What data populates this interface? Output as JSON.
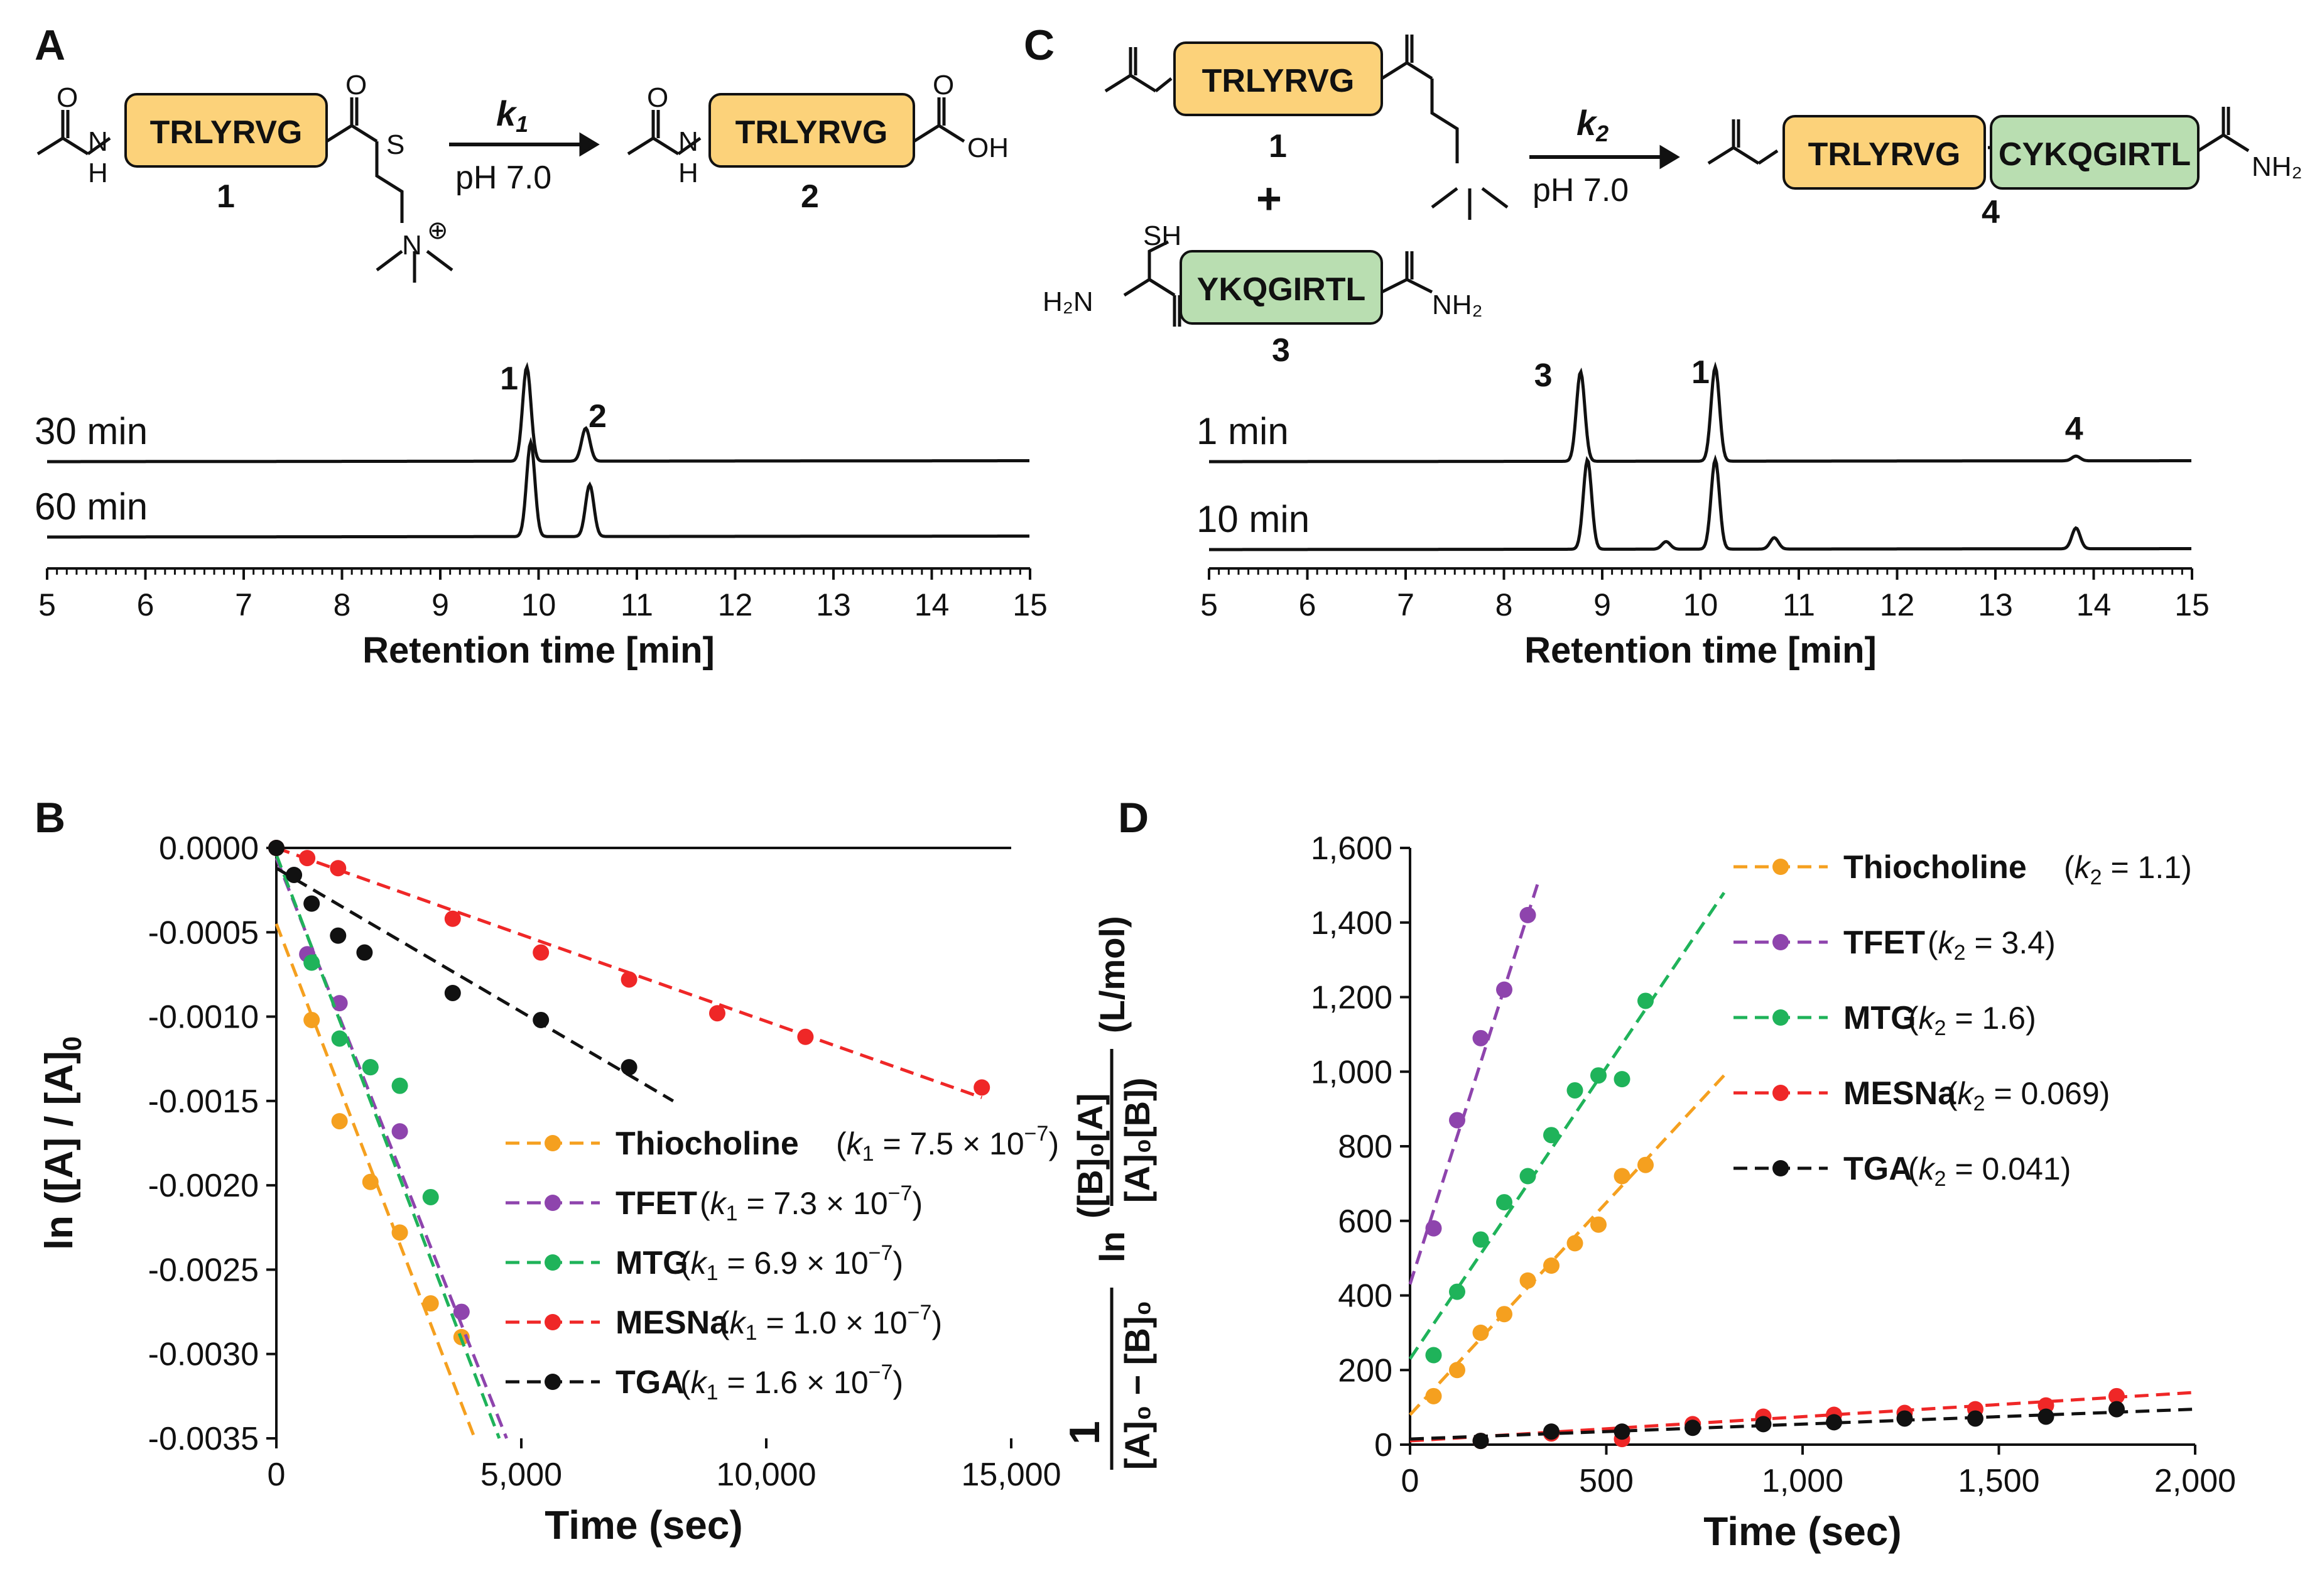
{
  "panels": {
    "A": {
      "letter": "A"
    },
    "B": {
      "letter": "B"
    },
    "C": {
      "letter": "C"
    },
    "D": {
      "letter": "D"
    }
  },
  "colors": {
    "orange": "#f5a01f",
    "purple": "#8e44ad",
    "green": "#1fb35a",
    "red": "#ef2727",
    "black": "#111111",
    "box_orange": "#fcd27a",
    "box_green": "#b9deb1"
  },
  "schemeA": {
    "peptide": "TRLYRVG",
    "reactant_label": "1",
    "product_label": "2",
    "k_label": "k",
    "k_sub": "1",
    "condition": "pH 7.0",
    "s_atom": "S",
    "o_atom": "O",
    "n_atom": "N",
    "h_atom": "H",
    "oh_group": "OH",
    "plus_charge": "⊕"
  },
  "schemeC": {
    "peptide1": "TRLYRVG",
    "peptide3": "YKQGIRTL",
    "peptide4": "CYKQGIRTL",
    "label1": "1",
    "label3": "3",
    "label4": "4",
    "plus": "+",
    "k_label": "k",
    "k_sub": "2",
    "condition": "pH 7.0",
    "sh_group": "SH",
    "h2n_group": "H₂N",
    "nh2_group": "NH₂"
  },
  "chromA": {
    "traces": [
      {
        "label": "30 min",
        "peaks": [
          {
            "rt": 9.88,
            "height": 1.0
          },
          {
            "rt": 10.48,
            "height": 0.35
          }
        ]
      },
      {
        "label": "60 min",
        "peaks": [
          {
            "rt": 9.92,
            "height": 1.0
          },
          {
            "rt": 10.52,
            "height": 0.55
          }
        ]
      }
    ],
    "peak_labels": [
      "1",
      "2"
    ],
    "xticks": [
      "5",
      "6",
      "7",
      "8",
      "9",
      "10",
      "11",
      "12",
      "13",
      "14",
      "15"
    ],
    "xlabel": "Retention time [min]",
    "xlim": [
      5,
      15
    ]
  },
  "chromC": {
    "traces": [
      {
        "label": "1 min",
        "peaks": [
          {
            "rt": 8.78,
            "height": 0.95
          },
          {
            "rt": 10.15,
            "height": 1.0
          },
          {
            "rt": 13.82,
            "height": 0.05
          }
        ]
      },
      {
        "label": "10 min",
        "peaks": [
          {
            "rt": 8.85,
            "height": 0.95
          },
          {
            "rt": 10.15,
            "height": 0.95
          },
          {
            "rt": 9.65,
            "height": 0.08
          },
          {
            "rt": 10.75,
            "height": 0.12
          },
          {
            "rt": 13.82,
            "height": 0.22
          }
        ]
      }
    ],
    "peak_labels": [
      "3",
      "1",
      "4"
    ],
    "xticks": [
      "5",
      "6",
      "7",
      "8",
      "9",
      "10",
      "11",
      "12",
      "13",
      "14",
      "15"
    ],
    "xlabel": "Retention time [min]",
    "xlim": [
      5,
      15
    ]
  },
  "chart_data": [
    {
      "panel": "B",
      "type": "scatter",
      "title": "",
      "xlabel": "Time (sec)",
      "ylabel": "ln ([A] / [A]0)",
      "xlim": [
        0,
        15000
      ],
      "ylim": [
        -0.0035,
        0.0
      ],
      "xticks": [
        0,
        5000,
        10000,
        15000
      ],
      "xtick_labels": [
        "0",
        "5,000",
        "10,000",
        "15,000"
      ],
      "yticks": [
        0.0,
        -0.0005,
        -0.001,
        -0.0015,
        -0.002,
        -0.0025,
        -0.003,
        -0.0035
      ],
      "ytick_labels": [
        "0.0000",
        "-0.0005",
        "-0.0010",
        "-0.0015",
        "-0.0020",
        "-0.0025",
        "-0.0030",
        "-0.0035"
      ],
      "legend_position": "bottom-right",
      "series": [
        {
          "name": "Thiocholine",
          "k_value": "7.5 × 10",
          "k_exp": "−7",
          "color_key": "orange",
          "x": [
            720,
            1290,
            1920,
            2520,
            3150,
            3780
          ],
          "y": [
            -0.00102,
            -0.00162,
            -0.00198,
            -0.00228,
            -0.0027,
            -0.0029
          ],
          "fit": [
            [
              0,
              -0.00045
            ],
            [
              4050,
              -0.0035
            ]
          ]
        },
        {
          "name": "TFET",
          "k_value": "7.3 × 10",
          "k_exp": "−7",
          "color_key": "purple",
          "x": [
            630,
            1290,
            1920,
            2520,
            3780
          ],
          "y": [
            -0.00063,
            -0.00092,
            -0.0013,
            -0.00168,
            -0.00275
          ],
          "fit": [
            [
              0,
              -6e-05
            ],
            [
              4700,
              -0.0035
            ]
          ]
        },
        {
          "name": "MTG",
          "k_value": "6.9 × 10",
          "k_exp": "−7",
          "color_key": "green",
          "x": [
            720,
            1290,
            1920,
            2520,
            3150
          ],
          "y": [
            -0.00068,
            -0.00113,
            -0.0013,
            -0.00141,
            -0.00207
          ],
          "fit": [
            [
              0,
              -4e-05
            ],
            [
              4550,
              -0.0035
            ]
          ]
        },
        {
          "name": "MESNa",
          "k_value": "1.0 × 10",
          "k_exp": "−7",
          "color_key": "red",
          "x": [
            0,
            630,
            1260,
            3600,
            5400,
            7200,
            9000,
            10800,
            14400
          ],
          "y": [
            0.0,
            -6e-05,
            -0.00012,
            -0.00042,
            -0.00062,
            -0.00078,
            -0.00098,
            -0.00112,
            -0.00142
          ],
          "fit": [
            [
              0,
              -0.0
            ],
            [
              14400,
              -0.00148
            ]
          ]
        },
        {
          "name": "TGA",
          "k_value": "1.6 × 10",
          "k_exp": "−7",
          "color_key": "black",
          "x": [
            0,
            360,
            720,
            1260,
            1800,
            3600,
            5400,
            7200
          ],
          "y": [
            0.0,
            -0.00016,
            -0.00033,
            -0.00052,
            -0.00062,
            -0.00086,
            -0.00102,
            -0.0013
          ],
          "fit": [
            [
              0,
              -0.00012
            ],
            [
              8100,
              -0.0015
            ]
          ]
        }
      ]
    },
    {
      "panel": "D",
      "type": "scatter",
      "title": "",
      "xlabel": "Time (sec)",
      "ylabel": "1/([A]0 − [B]0) ln([B]0[A] / [A]0[B]) (L/mol)",
      "xlim": [
        0,
        2000
      ],
      "ylim": [
        0,
        1600
      ],
      "xticks": [
        0,
        500,
        1000,
        1500,
        2000
      ],
      "xtick_labels": [
        "0",
        "500",
        "1,000",
        "1,500",
        "2,000"
      ],
      "yticks": [
        0,
        200,
        400,
        600,
        800,
        1000,
        1200,
        1400,
        1600
      ],
      "ytick_labels": [
        "0",
        "200",
        "400",
        "600",
        "800",
        "1,000",
        "1,200",
        "1,400",
        "1,600"
      ],
      "legend_position": "top-right",
      "series": [
        {
          "name": "Thiocholine",
          "k_value": "1.1",
          "color_key": "orange",
          "x": [
            60,
            120,
            180,
            240,
            300,
            360,
            420,
            480,
            540,
            600
          ],
          "y": [
            130,
            200,
            300,
            350,
            440,
            480,
            540,
            590,
            720,
            750
          ],
          "fit": [
            [
              0,
              80
            ],
            [
              800,
              990
            ]
          ]
        },
        {
          "name": "TFET",
          "k_value": "3.4",
          "color_key": "purple",
          "x": [
            60,
            120,
            180,
            240,
            300
          ],
          "y": [
            580,
            870,
            1090,
            1220,
            1420
          ],
          "fit": [
            [
              0,
              430
            ],
            [
              330,
              1520
            ]
          ]
        },
        {
          "name": "MTG",
          "k_value": "1.6",
          "color_key": "green",
          "x": [
            60,
            120,
            180,
            240,
            300,
            360,
            420,
            480,
            540,
            600
          ],
          "y": [
            240,
            410,
            550,
            650,
            720,
            830,
            950,
            990,
            980,
            1190
          ],
          "fit": [
            [
              0,
              230
            ],
            [
              800,
              1480
            ]
          ]
        },
        {
          "name": "MESNa",
          "k_value": "0.069",
          "color_key": "red",
          "x": [
            180,
            360,
            540,
            720,
            900,
            1080,
            1260,
            1440,
            1620,
            1800
          ],
          "y": [
            10,
            30,
            15,
            55,
            75,
            80,
            85,
            95,
            105,
            130
          ],
          "fit": [
            [
              0,
              10
            ],
            [
              2000,
              140
            ]
          ]
        },
        {
          "name": "TGA",
          "k_value": "0.041",
          "color_key": "black",
          "x": [
            180,
            360,
            540,
            720,
            900,
            1080,
            1260,
            1440,
            1620,
            1800
          ],
          "y": [
            10,
            35,
            35,
            45,
            55,
            60,
            70,
            70,
            75,
            95
          ],
          "fit": [
            [
              0,
              15
            ],
            [
              2000,
              95
            ]
          ]
        }
      ]
    }
  ]
}
